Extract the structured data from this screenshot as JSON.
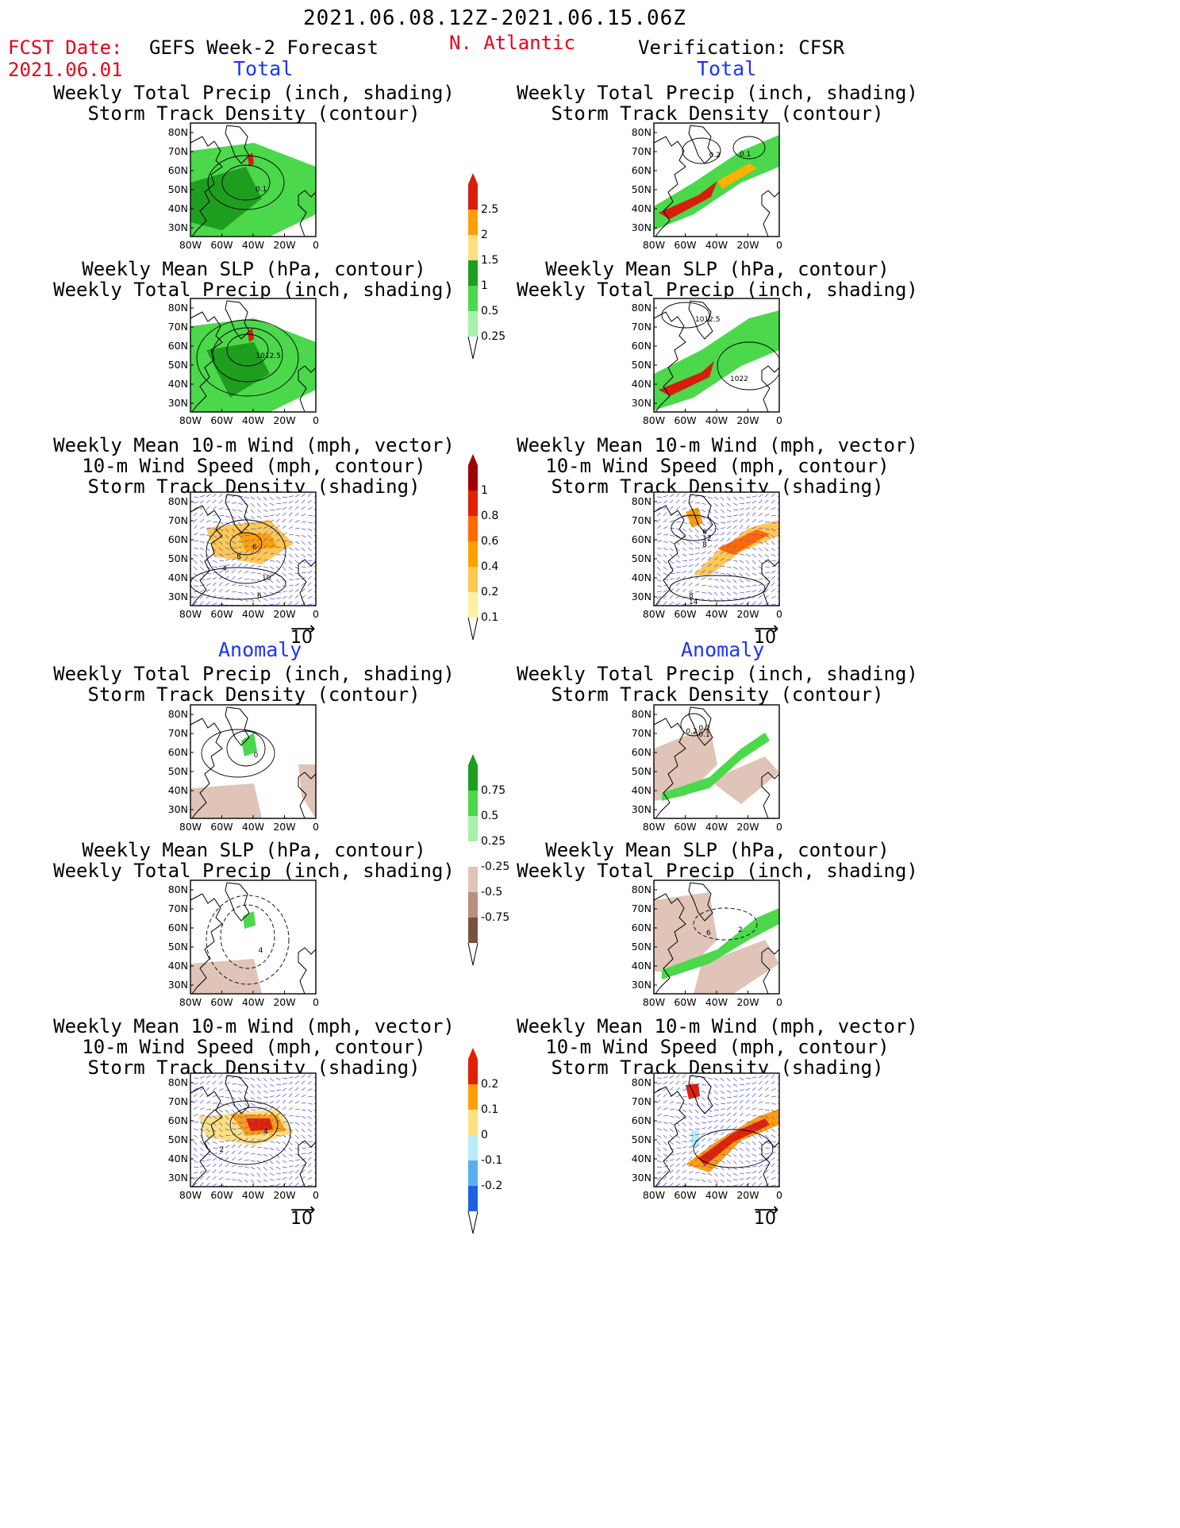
{
  "header": {
    "date_range": "2021.06.08.12Z-2021.06.15.06Z",
    "fcst_label": "FCST Date:",
    "fcst_date": "2021.06.01",
    "forecast_title": "GEFS Week-2 Forecast",
    "region": "N. Atlantic",
    "verification": "Verification: CFSR"
  },
  "sections": {
    "total": "Total",
    "anomaly": "Anomaly"
  },
  "titles": {
    "precip_track": [
      "Weekly Total Precip (inch, shading)",
      "Storm Track Density (contour)"
    ],
    "slp_precip": [
      "Weekly Mean SLP (hPa, contour)",
      "Weekly Total Precip (inch, shading)"
    ],
    "wind_track": [
      "Weekly Mean 10-m Wind (mph, vector)",
      "10-m Wind Speed (mph, contour)",
      "Storm Track Density (shading)"
    ]
  },
  "axes": {
    "lat_ticks": [
      "80N",
      "70N",
      "60N",
      "50N",
      "40N",
      "30N"
    ],
    "lon_ticks": [
      "80W",
      "60W",
      "40W",
      "20W",
      "0"
    ]
  },
  "vector_ref": "10",
  "colorbars": {
    "precip_total": {
      "labels": [
        "2.5",
        "2",
        "1.5",
        "1",
        "0.5",
        "0.25"
      ],
      "colors": [
        "#d81e0a",
        "#ff9e0a",
        "#ffe080",
        "#1e9e1e",
        "#4bd84b",
        "#a6f2a6"
      ]
    },
    "track_total": {
      "labels": [
        "1",
        "0.8",
        "0.6",
        "0.4",
        "0.2",
        "0.1"
      ],
      "colors": [
        "#a00000",
        "#e02000",
        "#ff6a00",
        "#ffa000",
        "#ffc850",
        "#fff0a0"
      ]
    },
    "precip_anom": {
      "labels": [
        "0.75",
        "0.5",
        "0.25",
        "-0.25",
        "-0.5",
        "-0.75"
      ],
      "colors": [
        "#1e9e1e",
        "#4bd84b",
        "#a6f2a6",
        "#ffffff",
        "#e0c4b8",
        "#b89080",
        "#7a5040"
      ]
    },
    "track_anom": {
      "labels": [
        "0.2",
        "0.1",
        "0",
        "-0.1",
        "-0.2"
      ],
      "colors": [
        "#e02000",
        "#ff9e0a",
        "#ffe080",
        "#b8ecf8",
        "#58b0f0",
        "#1e60e0"
      ]
    }
  },
  "contour_labels": {
    "f1": [
      "0.1"
    ],
    "v1": [
      "0.2",
      "0.1"
    ],
    "f2": [
      "1012.5"
    ],
    "v2": [
      "1012.5",
      "1022"
    ],
    "f3": [
      "6",
      "4",
      "6",
      "8",
      "10"
    ],
    "v3": [
      "6",
      "8",
      "12",
      "14",
      "8"
    ],
    "f4": [
      "0"
    ],
    "v4": [
      "0.2",
      "0.2",
      "0.1"
    ],
    "f5": [
      "4"
    ],
    "v5": [
      "2",
      "6"
    ],
    "f6": [
      "4",
      "2"
    ],
    "v6": []
  }
}
